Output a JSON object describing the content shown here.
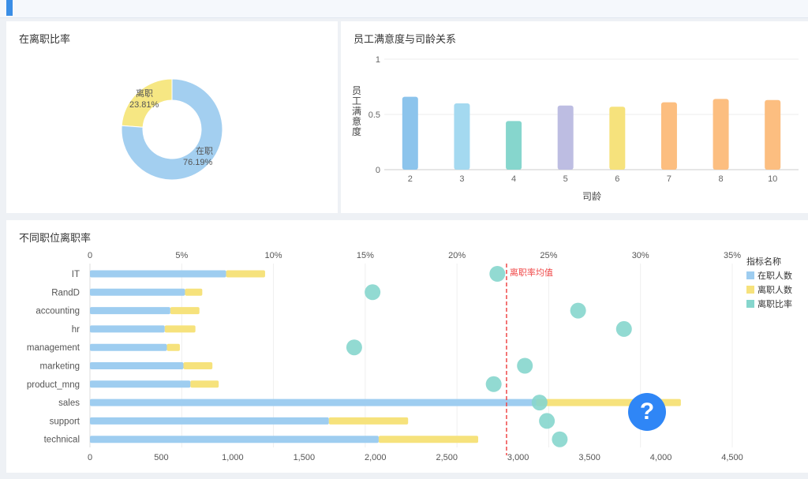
{
  "colors": {
    "onjob": "#9ecdf0",
    "left": "#f6e27c",
    "rate": "#86d6cd",
    "avg_line": "#f04848",
    "help": "#2f86f6"
  },
  "donut": {
    "title": "在离职比率",
    "slices": [
      {
        "name": "在职",
        "value": 76.19,
        "label": "76.19%",
        "color": "#a3cff0"
      },
      {
        "name": "离职",
        "value": 23.81,
        "label": "23.81%",
        "color": "#f6e783"
      }
    ]
  },
  "bars": {
    "title": "员工满意度与司龄关系",
    "chart_data": {
      "type": "bar",
      "categories": [
        "2",
        "3",
        "4",
        "5",
        "6",
        "7",
        "8",
        "10"
      ],
      "values": [
        0.66,
        0.6,
        0.44,
        0.58,
        0.57,
        0.61,
        0.64,
        0.63
      ],
      "colors": [
        "#8cc4ec",
        "#a4d9f0",
        "#86d6cd",
        "#bdbde2",
        "#f6e27c",
        "#fcbe80",
        "#fcbe80",
        "#fcbe80"
      ],
      "ylabel": "员工满意度",
      "xlabel": "司龄",
      "ylim": [
        0,
        1
      ],
      "yticks": [
        "1",
        "0.5",
        "0"
      ]
    }
  },
  "combo": {
    "title": "不同职位离职率",
    "legend_title": "指标名称",
    "avg_label": "离职率均值",
    "avg_rate": 22.7,
    "chart_data": {
      "type": "bar",
      "categories": [
        "IT",
        "RandD",
        "accounting",
        "hr",
        "management",
        "marketing",
        "product_mng",
        "sales",
        "support",
        "technical"
      ],
      "series": [
        {
          "name": "在职人数",
          "values": [
            954,
            666,
            563,
            524,
            539,
            655,
            704,
            3126,
            1674,
            2023
          ]
        },
        {
          "name": "离职人数",
          "values": [
            273,
            121,
            204,
            215,
            91,
            203,
            198,
            1014,
            555,
            697
          ]
        },
        {
          "name": "离职比率",
          "values": [
            22.2,
            15.4,
            26.6,
            29.1,
            14.4,
            23.7,
            22.0,
            24.5,
            24.9,
            25.6
          ]
        }
      ],
      "x_bottom_ticks": [
        "0",
        "500",
        "1,000",
        "1,500",
        "2,000",
        "2,500",
        "3,000",
        "3,500",
        "4,000",
        "4,500"
      ],
      "x_top_ticks": [
        "0",
        "5%",
        "10%",
        "15%",
        "20%",
        "25%",
        "30%",
        "35%"
      ],
      "x_bottom_max": 4500,
      "x_top_max": 35
    }
  },
  "help_label": "?"
}
